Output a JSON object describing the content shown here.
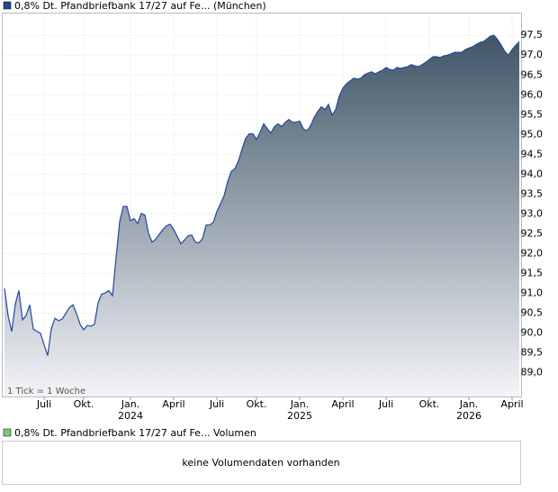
{
  "chart_data": {
    "type": "area",
    "title": "0,8% Dt. Pfandbriefbank 17/27 auf Fe... (München)",
    "note": "1 Tick = 1 Woche",
    "volume_title": "0,8% Dt. Pfandbriefbank 17/27 auf Fe... Volumen",
    "volume_message": "keine Volumendaten vorhanden",
    "color": "#23479c",
    "grid": true,
    "ylim": [
      88.4,
      98.05
    ],
    "yticks": [
      {
        "value": 89,
        "label": "89,0"
      },
      {
        "value": 89.5,
        "label": "89,5"
      },
      {
        "value": 90,
        "label": "90,0"
      },
      {
        "value": 90.5,
        "label": "90,5"
      },
      {
        "value": 91,
        "label": "91,0"
      },
      {
        "value": 91.5,
        "label": "91,5"
      },
      {
        "value": 92,
        "label": "92,0"
      },
      {
        "value": 92.5,
        "label": "92,5"
      },
      {
        "value": 93,
        "label": "93,0"
      },
      {
        "value": 93.5,
        "label": "93,5"
      },
      {
        "value": 94,
        "label": "94,0"
      },
      {
        "value": 94.5,
        "label": "94,5"
      },
      {
        "value": 95,
        "label": "95,0"
      },
      {
        "value": 95.5,
        "label": "95,5"
      },
      {
        "value": 96,
        "label": "96,0"
      },
      {
        "value": 96.5,
        "label": "96,5"
      },
      {
        "value": 97,
        "label": "97,0"
      },
      {
        "value": 97.5,
        "label": "97,5"
      }
    ],
    "categories": [
      null,
      null,
      null,
      null,
      null,
      null,
      null,
      null,
      null,
      null,
      null,
      "Juli",
      null,
      null,
      null,
      null,
      null,
      null,
      null,
      null,
      null,
      null,
      "Okt.",
      null,
      null,
      null,
      null,
      null,
      null,
      null,
      null,
      null,
      null,
      null,
      null,
      "Jan. 2024",
      null,
      null,
      null,
      null,
      null,
      null,
      null,
      null,
      null,
      null,
      null,
      "April",
      null,
      null,
      null,
      null,
      null,
      null,
      null,
      null,
      null,
      null,
      null,
      "Juli",
      null,
      null,
      null,
      null,
      null,
      null,
      null,
      null,
      null,
      null,
      "Okt.",
      null,
      null,
      null,
      null,
      null,
      null,
      null,
      null,
      null,
      null,
      null,
      "Jan. 2025",
      null,
      null,
      null,
      null,
      null,
      null,
      null,
      null,
      null,
      null,
      null,
      "April",
      null,
      null,
      null,
      null,
      null,
      null,
      null,
      null,
      null,
      null,
      null,
      "Juli",
      null,
      null,
      null,
      null,
      null,
      null,
      null,
      null,
      null,
      null,
      null,
      "Okt.",
      null,
      null,
      null,
      null,
      null,
      null,
      null,
      null,
      null,
      null,
      "Jan. 2026",
      null,
      null,
      null,
      null,
      null,
      null,
      null,
      null,
      null,
      null,
      null,
      "April",
      null,
      null
    ],
    "values": [
      91.12,
      90.44,
      90.04,
      90.73,
      91.07,
      90.33,
      90.44,
      90.71,
      90.1,
      90.04,
      89.99,
      89.7,
      89.43,
      90.1,
      90.37,
      90.31,
      90.35,
      90.49,
      90.64,
      90.71,
      90.49,
      90.22,
      90.08,
      90.19,
      90.17,
      90.22,
      90.76,
      90.98,
      91.01,
      91.07,
      90.94,
      91.91,
      92.81,
      93.19,
      93.19,
      92.83,
      92.88,
      92.76,
      93.01,
      92.97,
      92.52,
      92.29,
      92.36,
      92.49,
      92.61,
      92.7,
      92.74,
      92.61,
      92.43,
      92.25,
      92.34,
      92.45,
      92.47,
      92.29,
      92.27,
      92.38,
      92.72,
      92.72,
      92.79,
      93.06,
      93.26,
      93.46,
      93.82,
      94.07,
      94.14,
      94.34,
      94.64,
      94.91,
      95.02,
      95.02,
      94.88,
      95.06,
      95.27,
      95.15,
      95.04,
      95.2,
      95.27,
      95.2,
      95.31,
      95.38,
      95.31,
      95.31,
      95.34,
      95.15,
      95.09,
      95.22,
      95.43,
      95.58,
      95.7,
      95.63,
      95.76,
      95.49,
      95.63,
      95.97,
      96.17,
      96.28,
      96.35,
      96.42,
      96.4,
      96.42,
      96.51,
      96.55,
      96.58,
      96.53,
      96.58,
      96.62,
      96.69,
      96.64,
      96.62,
      96.69,
      96.67,
      96.69,
      96.71,
      96.76,
      96.73,
      96.71,
      96.76,
      96.82,
      96.89,
      96.96,
      96.96,
      96.94,
      96.98,
      97.0,
      97.03,
      97.07,
      97.07,
      97.07,
      97.14,
      97.18,
      97.21,
      97.27,
      97.32,
      97.34,
      97.41,
      97.48,
      97.5,
      97.39,
      97.25,
      97.09,
      97.0,
      97.14,
      97.25,
      97.34
    ]
  }
}
